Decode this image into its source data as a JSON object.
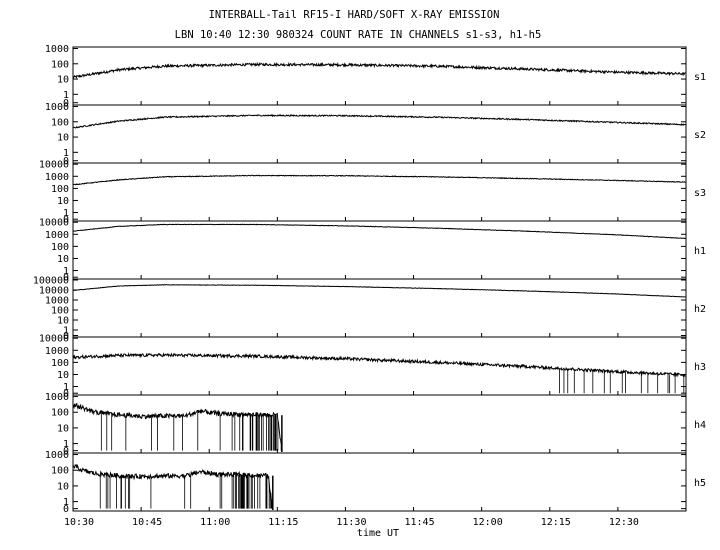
{
  "chart_data": {
    "type": "line",
    "title": "INTERBALL-Tail RF15-I HARD/SOFT X-RAY EMISSION",
    "subtitle": "LBN 10:40 12:30 980324  COUNT RATE IN CHANNELS s1-s3, h1-h5",
    "xlabel": "time UT",
    "x_ticks": [
      "10:30",
      "10:45",
      "11:00",
      "11:15",
      "11:30",
      "11:45",
      "12:00",
      "12:15",
      "12:30"
    ],
    "x_range_minutes": [
      0,
      135
    ],
    "y_scale": "log",
    "grid": false,
    "panels": [
      {
        "name": "s1",
        "ylim_decades": [
          -0.7,
          3.1
        ],
        "y_ticks": [
          "1000",
          "100",
          "10",
          "1",
          "0"
        ],
        "y_tick_decades": [
          3,
          2,
          1,
          0,
          -0.55
        ],
        "keypoints": [
          [
            0,
            13
          ],
          [
            10,
            40
          ],
          [
            20,
            70
          ],
          [
            40,
            90
          ],
          [
            60,
            85
          ],
          [
            80,
            70
          ],
          [
            100,
            45
          ],
          [
            120,
            28
          ],
          [
            135,
            22
          ]
        ],
        "noise": 0.08,
        "dropout_end_min": null
      },
      {
        "name": "s2",
        "ylim_decades": [
          -0.7,
          3.1
        ],
        "y_ticks": [
          "1000",
          "100",
          "10",
          "1",
          "0"
        ],
        "y_tick_decades": [
          3,
          2,
          1,
          0,
          -0.55
        ],
        "keypoints": [
          [
            0,
            40
          ],
          [
            10,
            110
          ],
          [
            20,
            200
          ],
          [
            40,
            260
          ],
          [
            60,
            250
          ],
          [
            80,
            200
          ],
          [
            100,
            140
          ],
          [
            120,
            90
          ],
          [
            135,
            65
          ]
        ],
        "noise": 0.04,
        "dropout_end_min": null
      },
      {
        "name": "s3",
        "ylim_decades": [
          -0.7,
          4.1
        ],
        "y_ticks": [
          "10000",
          "1000",
          "100",
          "10",
          "1",
          "0"
        ],
        "y_tick_decades": [
          4,
          3,
          2,
          1,
          0,
          -0.55
        ],
        "keypoints": [
          [
            0,
            200
          ],
          [
            10,
            500
          ],
          [
            20,
            900
          ],
          [
            40,
            1150
          ],
          [
            60,
            1100
          ],
          [
            80,
            900
          ],
          [
            100,
            650
          ],
          [
            120,
            450
          ],
          [
            135,
            330
          ]
        ],
        "noise": 0.03,
        "dropout_end_min": null
      },
      {
        "name": "h1",
        "ylim_decades": [
          -0.7,
          4.1
        ],
        "y_ticks": [
          "10000",
          "1000",
          "100",
          "10",
          "1",
          "0"
        ],
        "y_tick_decades": [
          4,
          3,
          2,
          1,
          0,
          -0.55
        ],
        "keypoints": [
          [
            0,
            1800
          ],
          [
            10,
            4500
          ],
          [
            20,
            6500
          ],
          [
            40,
            6500
          ],
          [
            60,
            5000
          ],
          [
            80,
            3200
          ],
          [
            100,
            1800
          ],
          [
            120,
            900
          ],
          [
            135,
            450
          ]
        ],
        "noise": 0.02,
        "dropout_end_min": null
      },
      {
        "name": "h2",
        "ylim_decades": [
          -0.7,
          5.1
        ],
        "y_ticks": [
          "100000",
          "10000",
          "1000",
          "100",
          "10",
          "1",
          "0"
        ],
        "y_tick_decades": [
          5,
          4,
          3,
          2,
          1,
          0,
          -0.55
        ],
        "keypoints": [
          [
            0,
            9000
          ],
          [
            10,
            25000
          ],
          [
            20,
            33000
          ],
          [
            40,
            30000
          ],
          [
            60,
            22000
          ],
          [
            80,
            14000
          ],
          [
            100,
            8000
          ],
          [
            120,
            4000
          ],
          [
            135,
            2000
          ]
        ],
        "noise": 0.02,
        "dropout_end_min": null
      },
      {
        "name": "h3",
        "ylim_decades": [
          -0.7,
          4.1
        ],
        "y_ticks": [
          "10000",
          "1000",
          "100",
          "10",
          "1",
          "0"
        ],
        "y_tick_decades": [
          4,
          3,
          2,
          1,
          0,
          -0.55
        ],
        "keypoints": [
          [
            0,
            260
          ],
          [
            10,
            380
          ],
          [
            20,
            400
          ],
          [
            40,
            330
          ],
          [
            60,
            200
          ],
          [
            80,
            100
          ],
          [
            100,
            45
          ],
          [
            120,
            17
          ],
          [
            135,
            9
          ]
        ],
        "noise": 0.12,
        "dropout_end_min": 135
      },
      {
        "name": "h4",
        "ylim_decades": [
          -0.6,
          3.1
        ],
        "y_ticks": [
          "1000",
          "100",
          "10",
          "1",
          "0"
        ],
        "y_tick_decades": [
          3,
          2,
          1,
          0,
          -0.45
        ],
        "keypoints": [
          [
            0,
            300
          ],
          [
            2,
            200
          ],
          [
            4,
            120
          ],
          [
            7,
            80
          ],
          [
            15,
            55
          ],
          [
            25,
            60
          ],
          [
            28,
            120
          ],
          [
            32,
            80
          ],
          [
            45,
            65
          ],
          [
            46,
            0
          ]
        ],
        "noise": 0.15,
        "dropout_end_min": 46
      },
      {
        "name": "h5",
        "ylim_decades": [
          -0.6,
          3.1
        ],
        "y_ticks": [
          "1000",
          "100",
          "10",
          "1",
          "0"
        ],
        "y_tick_decades": [
          3,
          2,
          1,
          0,
          -0.45
        ],
        "keypoints": [
          [
            0,
            200
          ],
          [
            2,
            100
          ],
          [
            5,
            60
          ],
          [
            12,
            40
          ],
          [
            25,
            45
          ],
          [
            28,
            80
          ],
          [
            32,
            55
          ],
          [
            43,
            45
          ],
          [
            44,
            0
          ]
        ],
        "noise": 0.15,
        "dropout_end_min": 44
      }
    ]
  }
}
